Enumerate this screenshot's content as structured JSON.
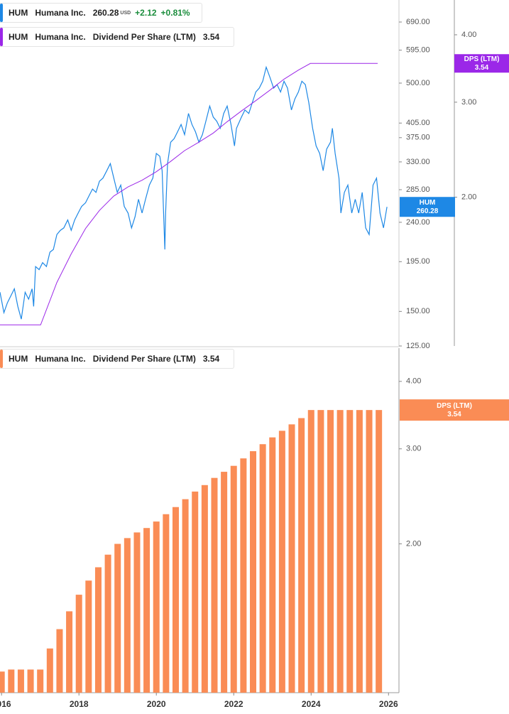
{
  "chart_data": [
    {
      "type": "line",
      "log": true,
      "xlim": [
        2015.96,
        2026.27
      ],
      "ylim": [
        125,
        775
      ],
      "yticks": [
        {
          "value": 690,
          "label": "690.00"
        },
        {
          "value": 595,
          "label": "595.00"
        },
        {
          "value": 500,
          "label": "500.00"
        },
        {
          "value": 405,
          "label": "405.00"
        },
        {
          "value": 375,
          "label": "375.00"
        },
        {
          "value": 330,
          "label": "330.00"
        },
        {
          "value": 285,
          "label": "285.00"
        },
        {
          "value": 240,
          "label": "240.00"
        },
        {
          "value": 195,
          "label": "195.00"
        },
        {
          "value": 150,
          "label": "150.00"
        },
        {
          "value": 125,
          "label": "125.00"
        }
      ],
      "y2lim": [
        1.06,
        4.64
      ],
      "y2ticks": [
        {
          "value": 4,
          "label": "4.00"
        },
        {
          "value": 3,
          "label": "3.00"
        },
        {
          "value": 2,
          "label": "2.00"
        }
      ],
      "series": [
        {
          "symbol": "HUM",
          "name": "Humana Inc.",
          "color": "#1e88e5",
          "last": 260.28,
          "currency": "USD",
          "change": "+2.12",
          "change_percent": "+0.81%",
          "x": [
            2015.96,
            2016.06,
            2016.15,
            2016.33,
            2016.42,
            2016.51,
            2016.61,
            2016.7,
            2016.79,
            2016.83,
            2016.88,
            2016.97,
            2017.06,
            2017.16,
            2017.25,
            2017.34,
            2017.43,
            2017.52,
            2017.61,
            2017.71,
            2017.8,
            2017.89,
            2017.98,
            2018.07,
            2018.17,
            2018.26,
            2018.35,
            2018.44,
            2018.53,
            2018.62,
            2018.72,
            2018.81,
            2018.9,
            2018.99,
            2019.08,
            2019.17,
            2019.27,
            2019.36,
            2019.45,
            2019.54,
            2019.63,
            2019.72,
            2019.82,
            2019.91,
            2020.0,
            2020.09,
            2020.15,
            2020.22,
            2020.24,
            2020.29,
            2020.37,
            2020.46,
            2020.55,
            2020.64,
            2020.73,
            2020.83,
            2020.92,
            2021.01,
            2021.1,
            2021.19,
            2021.28,
            2021.38,
            2021.47,
            2021.56,
            2021.65,
            2021.74,
            2021.83,
            2021.93,
            2022.02,
            2022.07,
            2022.2,
            2022.29,
            2022.39,
            2022.48,
            2022.57,
            2022.66,
            2022.75,
            2022.84,
            2022.94,
            2023.03,
            2023.12,
            2023.21,
            2023.3,
            2023.39,
            2023.49,
            2023.58,
            2023.67,
            2023.76,
            2023.85,
            2023.94,
            2024.04,
            2024.13,
            2024.22,
            2024.31,
            2024.4,
            2024.5,
            2024.55,
            2024.62,
            2024.72,
            2024.77,
            2024.86,
            2024.95,
            2025.05,
            2025.14,
            2025.23,
            2025.32,
            2025.41,
            2025.5,
            2025.6,
            2025.69,
            2025.78,
            2025.87,
            2025.96
          ],
          "values": [
            166,
            149,
            157,
            169,
            154,
            144,
            166,
            160,
            169,
            154,
            190,
            187,
            194,
            190,
            205,
            208,
            225,
            230,
            233,
            243,
            230,
            243,
            252,
            261,
            266,
            276,
            286,
            281,
            298,
            303,
            315,
            327,
            303,
            281,
            292,
            261,
            252,
            233,
            247,
            271,
            252,
            271,
            292,
            303,
            345,
            340,
            315,
            208,
            252,
            327,
            366,
            373,
            387,
            402,
            381,
            426,
            402,
            387,
            366,
            381,
            409,
            443,
            418,
            409,
            394,
            426,
            443,
            402,
            359,
            394,
            418,
            434,
            426,
            451,
            477,
            487,
            505,
            544,
            514,
            487,
            496,
            477,
            505,
            487,
            434,
            460,
            477,
            505,
            496,
            451,
            394,
            359,
            345,
            315,
            353,
            366,
            394,
            345,
            303,
            252,
            281,
            292,
            252,
            271,
            252,
            281,
            233,
            225,
            292,
            303,
            252,
            233,
            260.28
          ]
        },
        {
          "symbol": "HUM",
          "company": "Humana Inc.",
          "name": "Dividend Per Share (LTM)",
          "tag": "DPS (LTM)",
          "color": "#9b27e8",
          "axis": "y2",
          "last": 3.54,
          "x": [
            2015.96,
            2017.01,
            2017.43,
            2017.8,
            2018.17,
            2018.53,
            2018.9,
            2019.27,
            2019.63,
            2020.0,
            2020.37,
            2020.73,
            2021.1,
            2021.47,
            2021.83,
            2022.2,
            2022.57,
            2022.94,
            2023.3,
            2023.67,
            2023.98,
            2025.72
          ],
          "values": [
            1.16,
            1.16,
            1.39,
            1.57,
            1.75,
            1.89,
            2.01,
            2.09,
            2.15,
            2.23,
            2.33,
            2.44,
            2.53,
            2.63,
            2.76,
            2.89,
            3.02,
            3.16,
            3.31,
            3.44,
            3.54,
            3.54
          ]
        }
      ]
    },
    {
      "type": "bar",
      "log": true,
      "xlim": [
        2015.96,
        2026.27
      ],
      "xticks": [
        2016,
        2018,
        2020,
        2022,
        2024,
        2026
      ],
      "ylim": [
        1.06,
        4.61
      ],
      "yticks": [
        {
          "value": 4,
          "label": "4.00"
        },
        {
          "value": 3,
          "label": "3.00"
        },
        {
          "value": 2,
          "label": "2.00"
        }
      ],
      "series": [
        {
          "symbol": "HUM",
          "company": "Humana Inc.",
          "name": "Dividend Per Share (LTM)",
          "tag": "DPS (LTM)",
          "color": "#fa8c55",
          "last": 3.54,
          "x": [
            2016.0,
            2016.25,
            2016.5,
            2016.75,
            2017.0,
            2017.25,
            2017.5,
            2017.75,
            2018.0,
            2018.25,
            2018.5,
            2018.75,
            2019.0,
            2019.25,
            2019.5,
            2019.75,
            2020.0,
            2020.25,
            2020.5,
            2020.75,
            2021.0,
            2021.25,
            2021.5,
            2021.75,
            2022.0,
            2022.25,
            2022.5,
            2022.75,
            2023.0,
            2023.25,
            2023.5,
            2023.75,
            2024.0,
            2024.25,
            2024.5,
            2024.75,
            2025.0,
            2025.25,
            2025.5,
            2025.75
          ],
          "values": [
            1.16,
            1.17,
            1.17,
            1.17,
            1.17,
            1.28,
            1.39,
            1.5,
            1.61,
            1.71,
            1.81,
            1.91,
            2.0,
            2.05,
            2.1,
            2.14,
            2.2,
            2.27,
            2.34,
            2.42,
            2.5,
            2.57,
            2.65,
            2.72,
            2.79,
            2.88,
            2.97,
            3.06,
            3.15,
            3.24,
            3.33,
            3.42,
            3.54,
            3.54,
            3.54,
            3.54,
            3.54,
            3.54,
            3.54,
            3.54
          ]
        }
      ]
    }
  ]
}
